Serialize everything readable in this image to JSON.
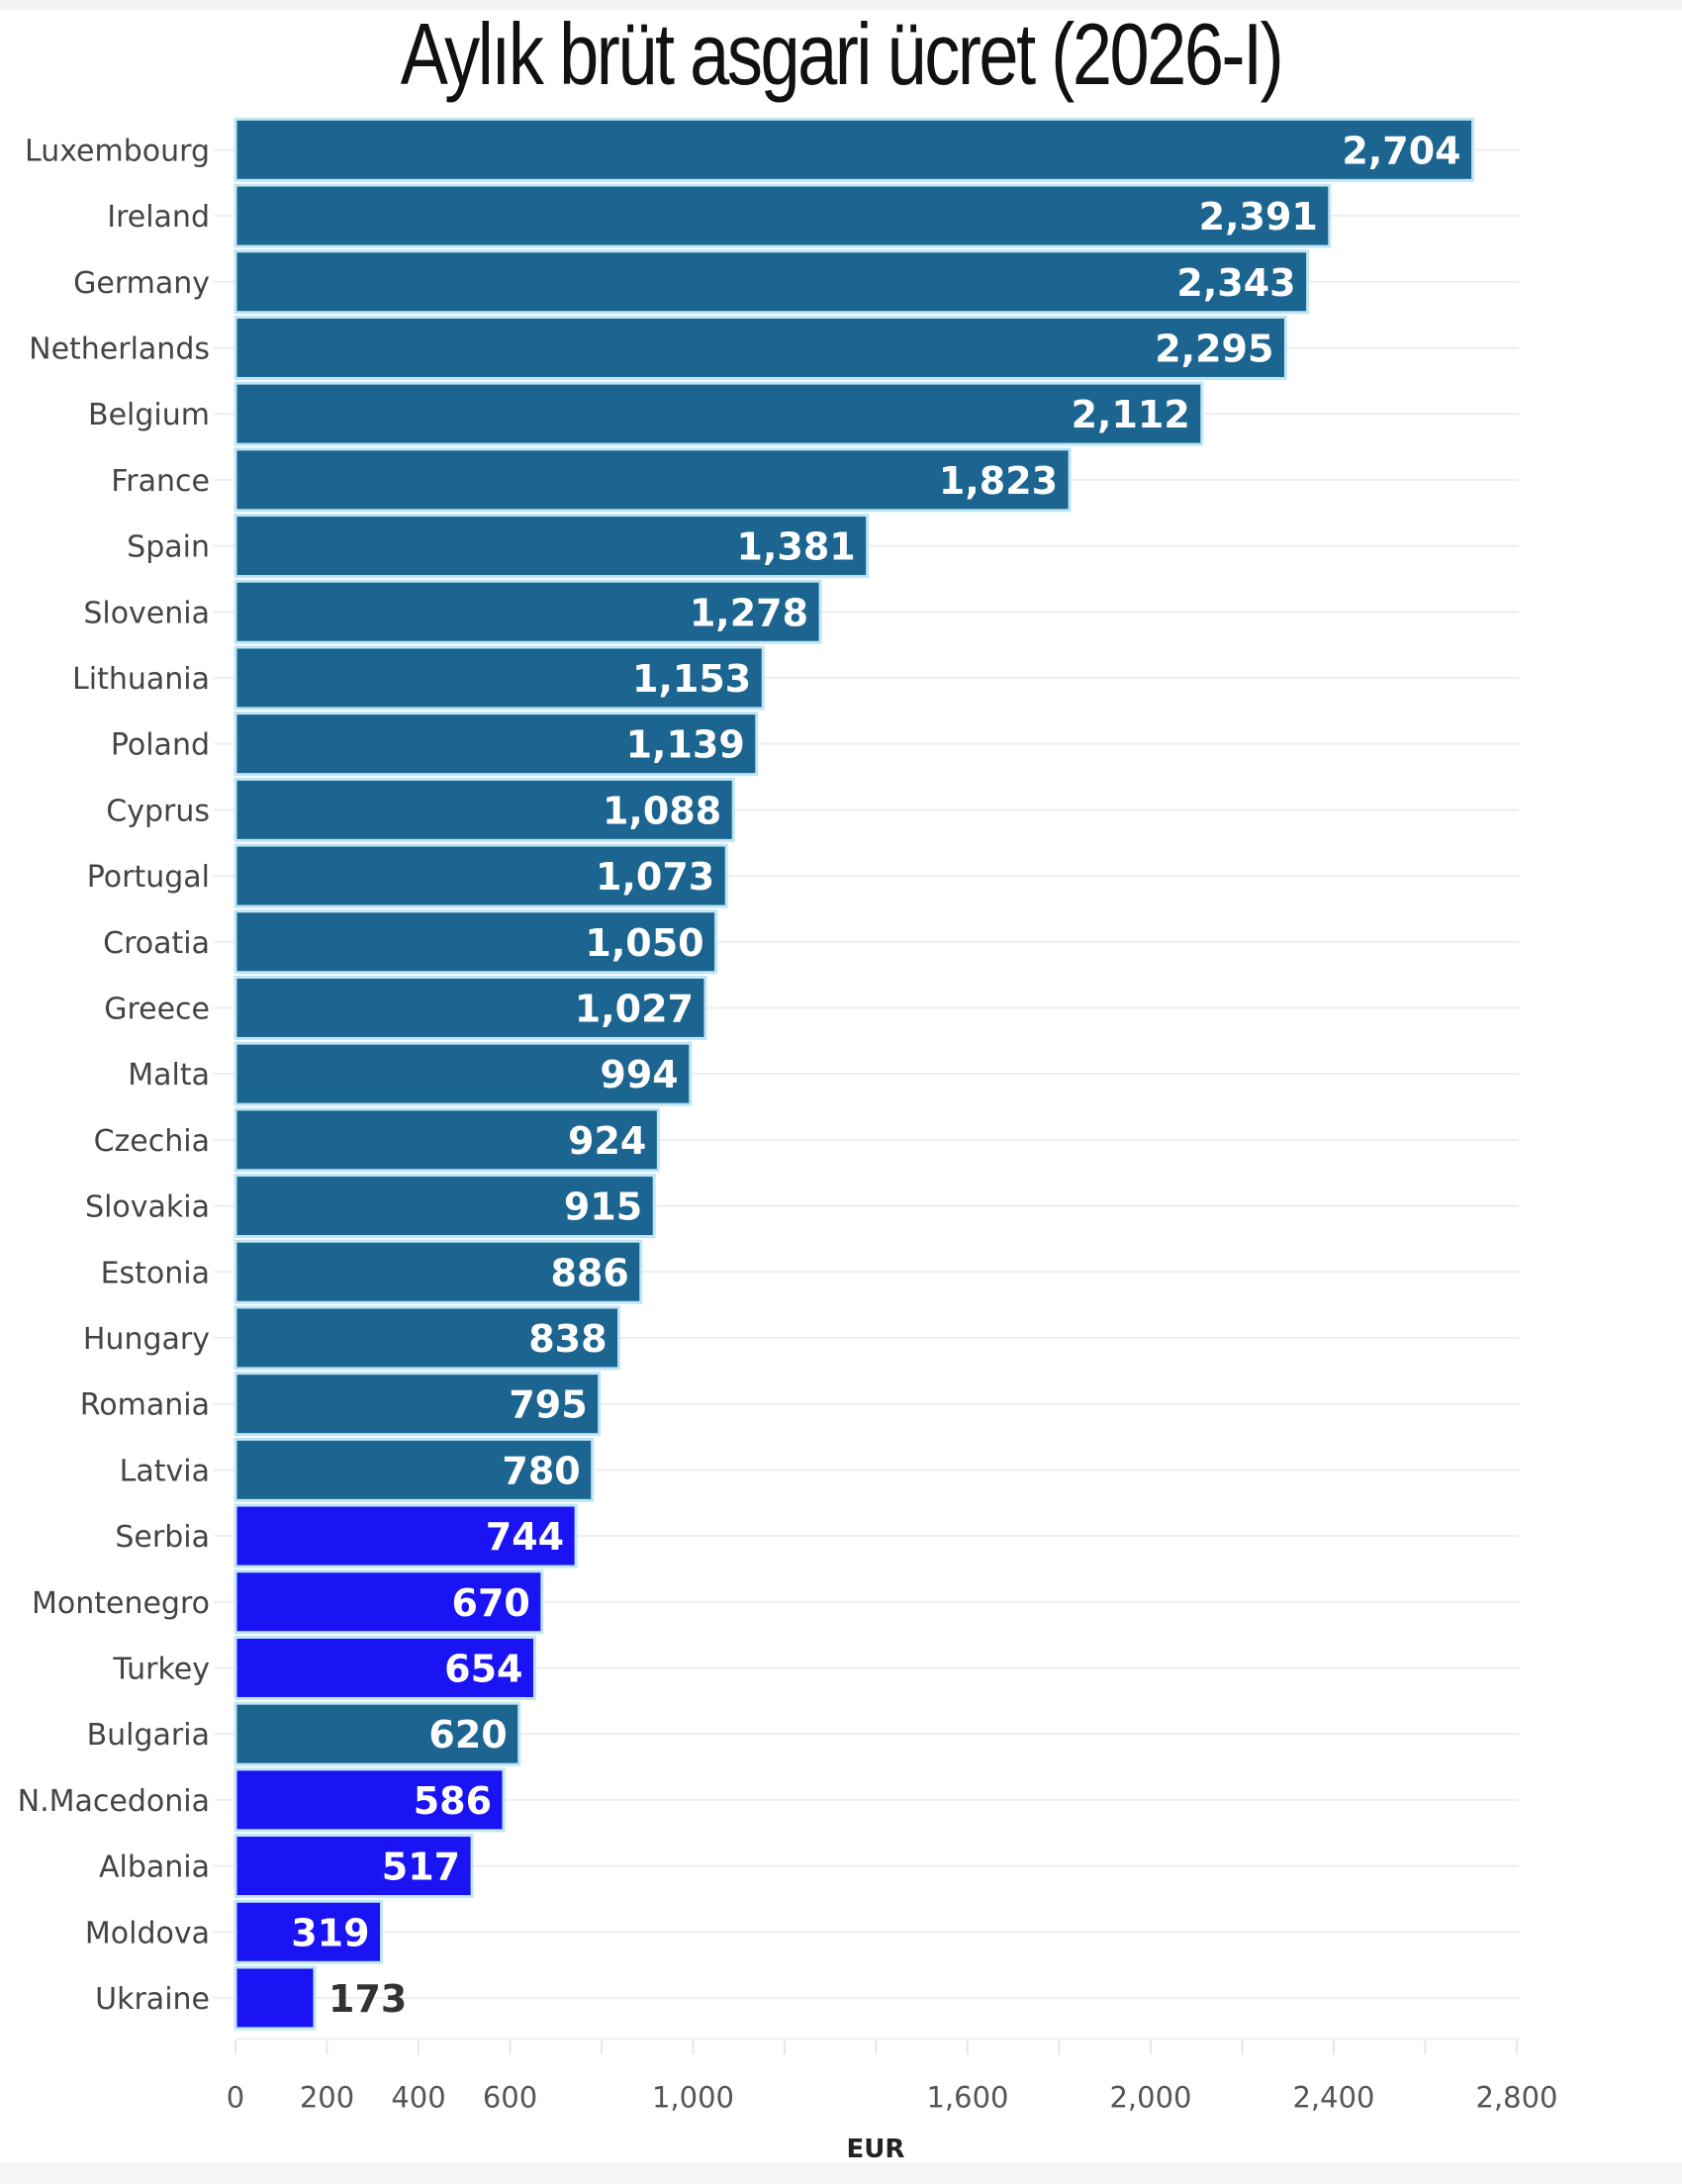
{
  "chart_data": {
    "type": "bar",
    "orientation": "horizontal",
    "title": "Aylık brüt asgari ücret (2026-I)",
    "xlabel": "EUR",
    "ylabel": "",
    "xlim": [
      0,
      2800
    ],
    "xticks": [
      0,
      200,
      400,
      600,
      800,
      1000,
      1200,
      1400,
      1600,
      1800,
      2000,
      2200,
      2400,
      2600,
      2800
    ],
    "xtick_labels": [
      {
        "value": 0,
        "label": "0"
      },
      {
        "value": 200,
        "label": "200"
      },
      {
        "value": 400,
        "label": "400"
      },
      {
        "value": 600,
        "label": "600"
      },
      {
        "value": 1000,
        "label": "1,000"
      },
      {
        "value": 1600,
        "label": "1,600"
      },
      {
        "value": 2000,
        "label": "2,000"
      },
      {
        "value": 2400,
        "label": "2,400"
      },
      {
        "value": 2800,
        "label": "2,800"
      }
    ],
    "grid": true,
    "colors": {
      "eu": "#1c6590",
      "non_eu": "#1a14f5",
      "separator": "#bfe6f5"
    },
    "categories": [
      "Luxembourg",
      "Ireland",
      "Germany",
      "Netherlands",
      "Belgium",
      "France",
      "Spain",
      "Slovenia",
      "Lithuania",
      "Poland",
      "Cyprus",
      "Portugal",
      "Croatia",
      "Greece",
      "Malta",
      "Czechia",
      "Slovakia",
      "Estonia",
      "Hungary",
      "Romania",
      "Latvia",
      "Serbia",
      "Montenegro",
      "Turkey",
      "Bulgaria",
      "N.Macedonia",
      "Albania",
      "Moldova",
      "Ukraine"
    ],
    "values": [
      2704,
      2391,
      2343,
      2295,
      2112,
      1823,
      1381,
      1278,
      1153,
      1139,
      1088,
      1073,
      1050,
      1027,
      994,
      924,
      915,
      886,
      838,
      795,
      780,
      744,
      670,
      654,
      620,
      586,
      517,
      319,
      173
    ],
    "value_labels": [
      "2,704",
      "2,391",
      "2,343",
      "2,295",
      "2,112",
      "1,823",
      "1,381",
      "1,278",
      "1,153",
      "1,139",
      "1,088",
      "1,073",
      "1,050",
      "1,027",
      "994",
      "924",
      "915",
      "886",
      "838",
      "795",
      "780",
      "744",
      "670",
      "654",
      "620",
      "586",
      "517",
      "319",
      "173"
    ],
    "groups": [
      "eu",
      "eu",
      "eu",
      "eu",
      "eu",
      "eu",
      "eu",
      "eu",
      "eu",
      "eu",
      "eu",
      "eu",
      "eu",
      "eu",
      "eu",
      "eu",
      "eu",
      "eu",
      "eu",
      "eu",
      "eu",
      "non_eu",
      "non_eu",
      "non_eu",
      "eu",
      "non_eu",
      "non_eu",
      "non_eu",
      "non_eu"
    ]
  }
}
